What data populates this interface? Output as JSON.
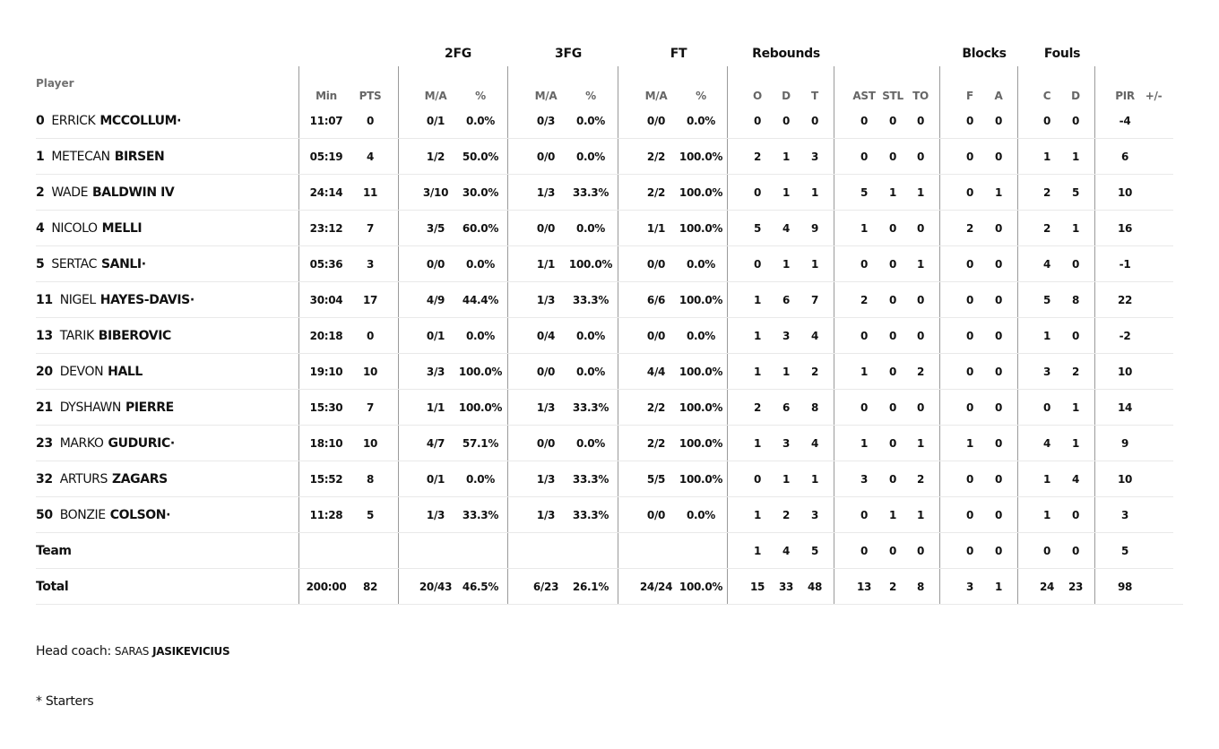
{
  "groups": {
    "fg2": "2FG",
    "fg3": "3FG",
    "ft": "FT",
    "rebounds": "Rebounds",
    "blocks": "Blocks",
    "fouls": "Fouls"
  },
  "columns": [
    "Min",
    "PTS",
    "M/A",
    "%",
    "M/A",
    "%",
    "M/A",
    "%",
    "O",
    "D",
    "T",
    "AST",
    "STL",
    "TO",
    "F",
    "A",
    "C",
    "D",
    "PIR",
    "+/-"
  ],
  "player_col_label": "Player",
  "players": [
    {
      "number": "0",
      "first": "ERRICK",
      "last": "MCCOLLUM",
      "starter": true,
      "stats": [
        "11:07",
        "0",
        "0/1",
        "0.0%",
        "0/3",
        "0.0%",
        "0/0",
        "0.0%",
        "0",
        "0",
        "0",
        "0",
        "0",
        "0",
        "0",
        "0",
        "0",
        "0",
        "-4",
        ""
      ]
    },
    {
      "number": "1",
      "first": "METECAN",
      "last": "BIRSEN",
      "starter": false,
      "stats": [
        "05:19",
        "4",
        "1/2",
        "50.0%",
        "0/0",
        "0.0%",
        "2/2",
        "100.0%",
        "2",
        "1",
        "3",
        "0",
        "0",
        "0",
        "0",
        "0",
        "1",
        "1",
        "6",
        ""
      ]
    },
    {
      "number": "2",
      "first": "WADE",
      "last": "BALDWIN IV",
      "starter": false,
      "stats": [
        "24:14",
        "11",
        "3/10",
        "30.0%",
        "1/3",
        "33.3%",
        "2/2",
        "100.0%",
        "0",
        "1",
        "1",
        "5",
        "1",
        "1",
        "0",
        "1",
        "2",
        "5",
        "10",
        ""
      ]
    },
    {
      "number": "4",
      "first": "NICOLO",
      "last": "MELLI",
      "starter": false,
      "stats": [
        "23:12",
        "7",
        "3/5",
        "60.0%",
        "0/0",
        "0.0%",
        "1/1",
        "100.0%",
        "5",
        "4",
        "9",
        "1",
        "0",
        "0",
        "2",
        "0",
        "2",
        "1",
        "16",
        ""
      ]
    },
    {
      "number": "5",
      "first": "SERTAC",
      "last": "SANLI",
      "starter": true,
      "stats": [
        "05:36",
        "3",
        "0/0",
        "0.0%",
        "1/1",
        "100.0%",
        "0/0",
        "0.0%",
        "0",
        "1",
        "1",
        "0",
        "0",
        "1",
        "0",
        "0",
        "4",
        "0",
        "-1",
        ""
      ]
    },
    {
      "number": "11",
      "first": "NIGEL",
      "last": "HAYES-DAVIS",
      "starter": true,
      "stats": [
        "30:04",
        "17",
        "4/9",
        "44.4%",
        "1/3",
        "33.3%",
        "6/6",
        "100.0%",
        "1",
        "6",
        "7",
        "2",
        "0",
        "0",
        "0",
        "0",
        "5",
        "8",
        "22",
        ""
      ]
    },
    {
      "number": "13",
      "first": "TARIK",
      "last": "BIBEROVIC",
      "starter": false,
      "stats": [
        "20:18",
        "0",
        "0/1",
        "0.0%",
        "0/4",
        "0.0%",
        "0/0",
        "0.0%",
        "1",
        "3",
        "4",
        "0",
        "0",
        "0",
        "0",
        "0",
        "1",
        "0",
        "-2",
        ""
      ]
    },
    {
      "number": "20",
      "first": "DEVON",
      "last": "HALL",
      "starter": false,
      "stats": [
        "19:10",
        "10",
        "3/3",
        "100.0%",
        "0/0",
        "0.0%",
        "4/4",
        "100.0%",
        "1",
        "1",
        "2",
        "1",
        "0",
        "2",
        "0",
        "0",
        "3",
        "2",
        "10",
        ""
      ]
    },
    {
      "number": "21",
      "first": "DYSHAWN",
      "last": "PIERRE",
      "starter": false,
      "stats": [
        "15:30",
        "7",
        "1/1",
        "100.0%",
        "1/3",
        "33.3%",
        "2/2",
        "100.0%",
        "2",
        "6",
        "8",
        "0",
        "0",
        "0",
        "0",
        "0",
        "0",
        "1",
        "14",
        ""
      ]
    },
    {
      "number": "23",
      "first": "MARKO",
      "last": "GUDURIC",
      "starter": true,
      "stats": [
        "18:10",
        "10",
        "4/7",
        "57.1%",
        "0/0",
        "0.0%",
        "2/2",
        "100.0%",
        "1",
        "3",
        "4",
        "1",
        "0",
        "1",
        "1",
        "0",
        "4",
        "1",
        "9",
        ""
      ]
    },
    {
      "number": "32",
      "first": "ARTURS",
      "last": "ZAGARS",
      "starter": false,
      "stats": [
        "15:52",
        "8",
        "0/1",
        "0.0%",
        "1/3",
        "33.3%",
        "5/5",
        "100.0%",
        "0",
        "1",
        "1",
        "3",
        "0",
        "2",
        "0",
        "0",
        "1",
        "4",
        "10",
        ""
      ]
    },
    {
      "number": "50",
      "first": "BONZIE",
      "last": "COLSON",
      "starter": true,
      "stats": [
        "11:28",
        "5",
        "1/3",
        "33.3%",
        "1/3",
        "33.3%",
        "0/0",
        "0.0%",
        "1",
        "2",
        "3",
        "0",
        "1",
        "1",
        "0",
        "0",
        "1",
        "0",
        "3",
        ""
      ]
    }
  ],
  "starter_mark": "·",
  "team": {
    "label": "Team",
    "stats": [
      "",
      "",
      "",
      "",
      "",
      "",
      "",
      "",
      "1",
      "4",
      "5",
      "0",
      "0",
      "0",
      "0",
      "0",
      "0",
      "0",
      "5",
      ""
    ]
  },
  "total": {
    "label": "Total",
    "stats": [
      "200:00",
      "82",
      "20/43",
      "46.5%",
      "6/23",
      "26.1%",
      "24/24",
      "100.0%",
      "15",
      "33",
      "48",
      "13",
      "2",
      "8",
      "3",
      "1",
      "24",
      "23",
      "98",
      ""
    ]
  },
  "coach": {
    "label": "Head coach:",
    "first": "SARAS",
    "last": "JASIKEVICIUS"
  },
  "starters_note": "* Starters"
}
